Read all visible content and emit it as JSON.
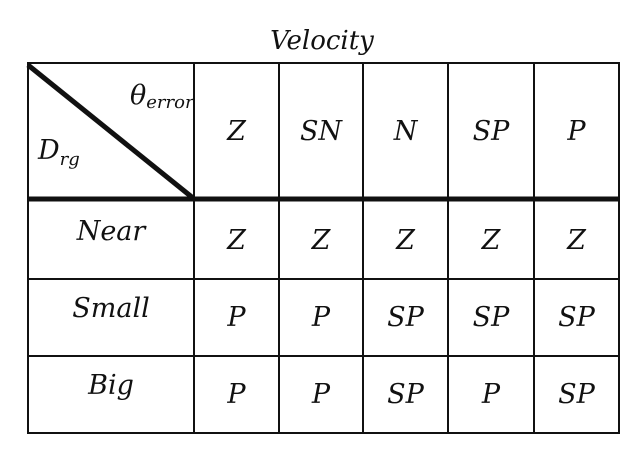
{
  "table": {
    "title": "Velocity",
    "corner": {
      "column_axis_symbol": "θ",
      "column_axis_subscript": "error",
      "row_axis_symbol": "D",
      "row_axis_subscript": "rg"
    },
    "columns": [
      "Z",
      "SN",
      "N",
      "SP",
      "P"
    ],
    "rows": [
      {
        "label": "Near",
        "cells": [
          "Z",
          "Z",
          "Z",
          "Z",
          "Z"
        ]
      },
      {
        "label": "Small",
        "cells": [
          "P",
          "P",
          "SP",
          "SP",
          "SP"
        ]
      },
      {
        "label": "Big",
        "cells": [
          "P",
          "P",
          "SP",
          "P",
          "SP"
        ]
      }
    ]
  }
}
